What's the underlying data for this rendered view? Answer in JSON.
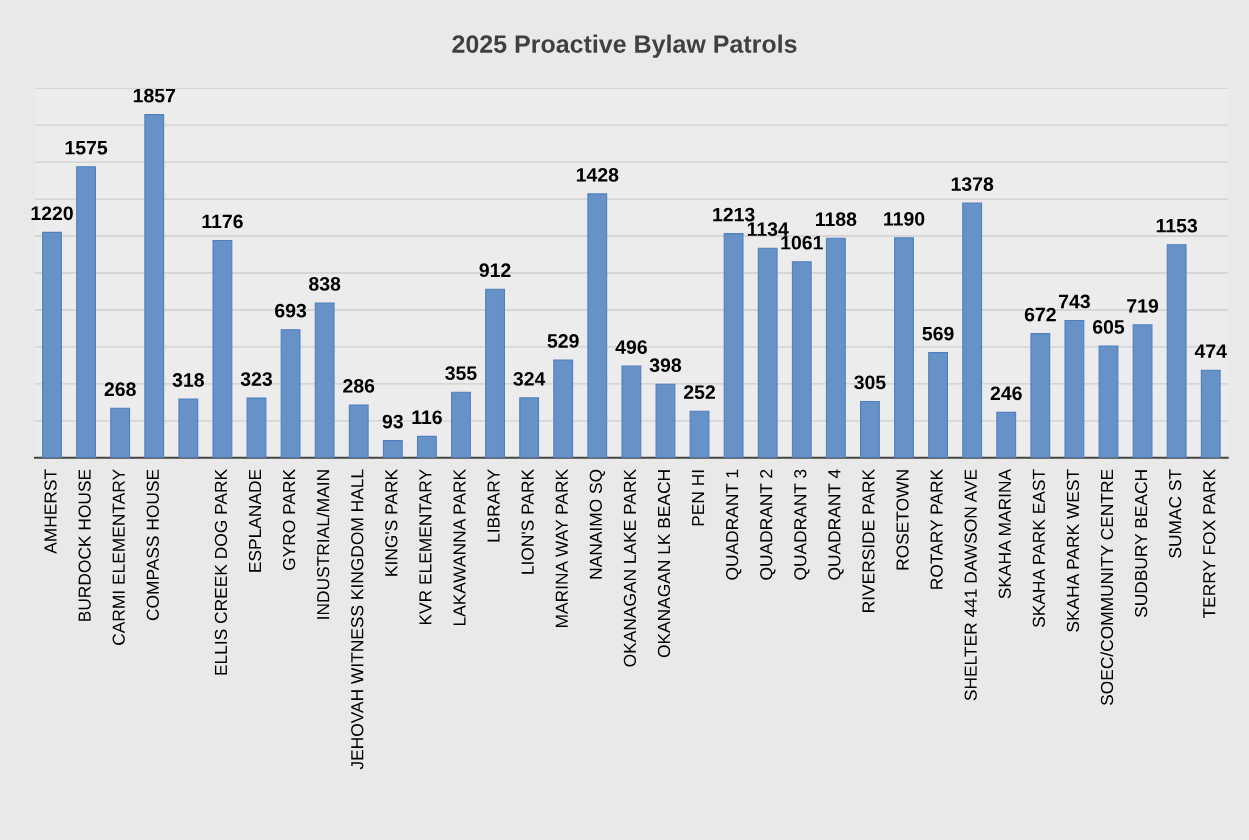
{
  "chart_data": {
    "type": "bar",
    "title": "2025 Proactive Bylaw Patrols",
    "categories": [
      "AMHERST",
      "BURDOCK HOUSE",
      "CARMI ELEMENTARY",
      "COMPASS HOUSE",
      null,
      "ELLIS CREEK DOG PARK",
      "ESPLANADE",
      "GYRO PARK",
      "INDUSTRIAL/MAIN",
      "JEHOVAH WITNESS KINGDOM HALL",
      "KING'S PARK",
      "KVR ELEMENTARY",
      "LAKAWANNA PARK",
      "LIBRARY",
      "LION'S PARK",
      "MARINA WAY PARK",
      "NANAIMO SQ",
      "OKANAGAN LAKE PARK",
      "OKANAGAN LK BEACH",
      "PEN HI",
      "QUADRANT 1",
      "QUADRANT 2",
      "QUADRANT 3",
      "QUADRANT 4",
      "RIVERSIDE PARK",
      "ROSETOWN",
      "ROTARY PARK",
      "SHELTER 441 DAWSON AVE",
      "SKAHA MARINA",
      "SKAHA PARK EAST",
      "SKAHA PARK WEST",
      "SOEC/COMMUNITY CENTRE",
      "SUDBURY BEACH",
      "SUMAC ST",
      "TERRY FOX PARK"
    ],
    "values": [
      1220,
      1575,
      268,
      1857,
      318,
      1176,
      323,
      693,
      838,
      286,
      93,
      116,
      355,
      912,
      324,
      529,
      1428,
      496,
      398,
      252,
      1213,
      1134,
      1061,
      1188,
      305,
      1190,
      569,
      1378,
      246,
      672,
      743,
      605,
      719,
      1153,
      474
    ],
    "color": "#6792c8",
    "ylim": [
      0,
      2000
    ],
    "yticks": [
      0,
      200,
      400,
      600,
      800,
      1000,
      1200,
      1400,
      1600,
      1800,
      2000
    ],
    "grid": "y",
    "tick_labels": "x",
    "data_labels": true
  }
}
